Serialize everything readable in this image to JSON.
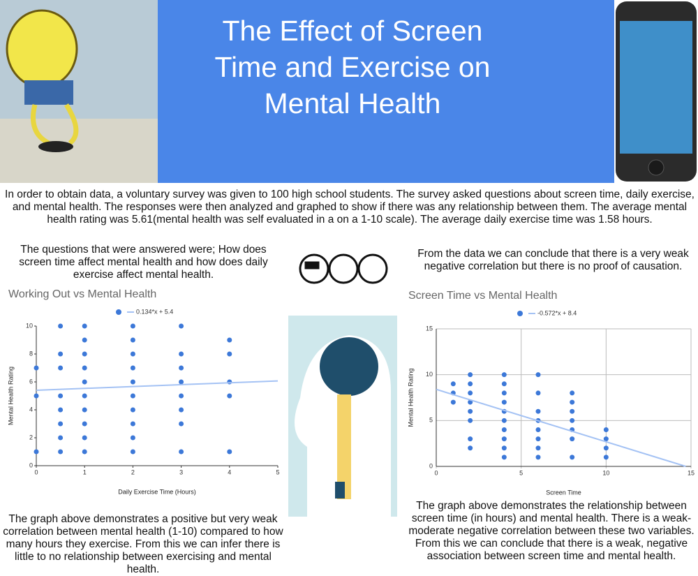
{
  "header": {
    "title": "The Effect of Screen Time and Exercise on Mental Health"
  },
  "intro": "In order to obtain data, a voluntary survey was given to 100 high school students. The survey asked questions about screen time, daily exercise, and mental health. The responses were then analyzed and graphed to show if there was any relationship between them. The average mental health rating was 5.61(mental health was self evaluated in a on a 1-10 scale). The average daily exercise time was 1.58 hours.",
  "questions": "The questions that were answered were; How does screen time affect mental health and how does daily exercise affect mental health.",
  "conclusion": "From the data we can conclude that there is a very weak negative correlation but there is no proof of causation.",
  "caption_left": "The graph above demonstrates a positive but very weak correlation  between mental health (1-10) compared to how many hours they exercise. From this we can infer there is  little to no relationship between exercising and mental health.",
  "caption_right": "The graph above demonstrates the relationship between screen time (in hours) and mental health. There is a weak-moderate negative correlation between these two variables. From this we can conclude that there is a weak, negative association between screen time and mental health.",
  "chart_data": [
    {
      "type": "scatter",
      "title": "Working Out vs Mental Health",
      "x_label": "Daily Exercise Time (Hours)",
      "y_label": "Mental Health Rating",
      "xlim": [
        0,
        5
      ],
      "xticks": [
        0,
        1,
        2,
        3,
        4,
        5
      ],
      "ylim": [
        0,
        10
      ],
      "yticks": [
        0,
        2,
        4,
        6,
        8,
        10
      ],
      "grid": false,
      "series": [
        {
          "color": "#3c78d8",
          "x": [
            0,
            0,
            0,
            0.5,
            0.5,
            0.5,
            0.5,
            0.5,
            0.5,
            0.5,
            0.5,
            1,
            1,
            1,
            1,
            1,
            1,
            1,
            1,
            1,
            1,
            2,
            2,
            2,
            2,
            2,
            2,
            2,
            2,
            2,
            2,
            3,
            3,
            3,
            3,
            3,
            3,
            3,
            3,
            4,
            4,
            4,
            4,
            4
          ],
          "values": [
            7,
            5,
            1,
            10,
            8,
            7,
            5,
            4,
            3,
            2,
            1,
            10,
            9,
            8,
            7,
            6,
            5,
            4,
            3,
            2,
            1,
            10,
            9,
            8,
            7,
            6,
            5,
            4,
            3,
            2,
            1,
            10,
            8,
            7,
            6,
            5,
            4,
            3,
            1,
            9,
            8,
            6,
            5,
            1
          ]
        },
        {
          "name": "0.134*x + 5.4",
          "type": "line",
          "color": "#a4c2f4",
          "x": [
            0,
            5
          ],
          "values": [
            5.4,
            6.07
          ]
        }
      ]
    },
    {
      "type": "scatter",
      "title": "Screen Time vs Mental Health",
      "x_label": "Screen Time",
      "y_label": "Mental Health Rating",
      "xlim": [
        0,
        15
      ],
      "xticks": [
        0,
        5,
        10,
        15
      ],
      "ylim": [
        0,
        15
      ],
      "yticks": [
        0,
        5,
        10,
        15
      ],
      "grid": true,
      "series": [
        {
          "color": "#3c78d8",
          "x": [
            1,
            1,
            1,
            2,
            2,
            2,
            2,
            2,
            2,
            2,
            2,
            4,
            4,
            4,
            4,
            4,
            4,
            4,
            4,
            4,
            4,
            6,
            6,
            6,
            6,
            6,
            6,
            6,
            6,
            8,
            8,
            8,
            8,
            8,
            8,
            8,
            10,
            10,
            10,
            10
          ],
          "values": [
            9,
            8,
            7,
            10,
            9,
            8,
            7,
            6,
            5,
            3,
            2,
            10,
            9,
            8,
            7,
            6,
            5,
            4,
            3,
            2,
            1,
            10,
            8,
            6,
            5,
            4,
            3,
            2,
            1,
            8,
            7,
            6,
            5,
            4,
            3,
            1,
            4,
            3,
            2,
            1
          ]
        },
        {
          "name": "-0.572*x + 8.4",
          "type": "line",
          "color": "#a4c2f4",
          "x": [
            0,
            14.69
          ],
          "values": [
            8.4,
            0
          ]
        }
      ]
    }
  ]
}
